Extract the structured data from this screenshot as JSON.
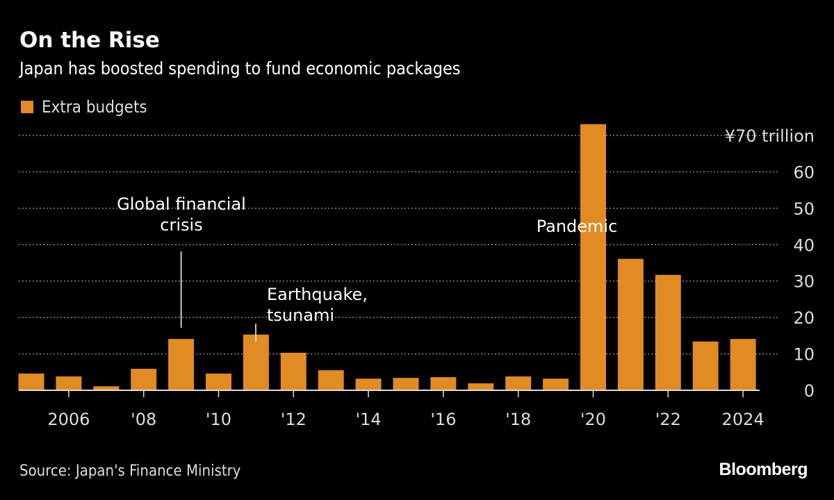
{
  "title": "On the Rise",
  "subtitle": "Japan has boosted spending to fund economic packages",
  "source": "Source: Japan's Finance Ministry",
  "logo": "Bloomberg",
  "chart_data": {
    "type": "bar",
    "legend": {
      "label": "Extra budgets",
      "placement": "top-left"
    },
    "colors": {
      "bar": "#e08b24",
      "background": "#000000",
      "grid": "#888888"
    },
    "categories": [
      "2005",
      "2006",
      "2007",
      "2008",
      "2009",
      "2010",
      "2011",
      "2012",
      "2013",
      "2014",
      "2015",
      "2016",
      "2017",
      "2018",
      "2019",
      "2020",
      "2021",
      "2022",
      "2023",
      "2024"
    ],
    "values": [
      4.6,
      3.8,
      1.1,
      5.9,
      14.1,
      4.6,
      15.3,
      10.3,
      5.5,
      3.2,
      3.4,
      3.6,
      1.9,
      3.8,
      3.2,
      73.1,
      36.1,
      31.7,
      13.4,
      14.1
    ],
    "x_tick_labels": [
      {
        "index": 1,
        "label": "2006"
      },
      {
        "index": 3,
        "label": "'08"
      },
      {
        "index": 5,
        "label": "'10"
      },
      {
        "index": 7,
        "label": "'12"
      },
      {
        "index": 9,
        "label": "'14"
      },
      {
        "index": 11,
        "label": "'16"
      },
      {
        "index": 13,
        "label": "'18"
      },
      {
        "index": 15,
        "label": "'20"
      },
      {
        "index": 17,
        "label": "'22"
      },
      {
        "index": 19,
        "label": "2024"
      }
    ],
    "y_ticks": [
      0,
      10,
      20,
      30,
      40,
      50,
      60,
      70
    ],
    "y_tick_labels": [
      "0",
      "10",
      "20",
      "30",
      "40",
      "50",
      "60",
      "¥70 trillion"
    ],
    "ylim": [
      0,
      73
    ],
    "y_axis_side": "right",
    "grid": true,
    "annotations": [
      {
        "label_lines": [
          "Global financial",
          "crisis"
        ],
        "index": 9999,
        "year": "2009"
      },
      {
        "label_lines": [
          "Earthquake,",
          "tsunami"
        ],
        "year": "2011"
      },
      {
        "label_lines": [
          "Pandemic"
        ],
        "year": "2020"
      }
    ]
  }
}
